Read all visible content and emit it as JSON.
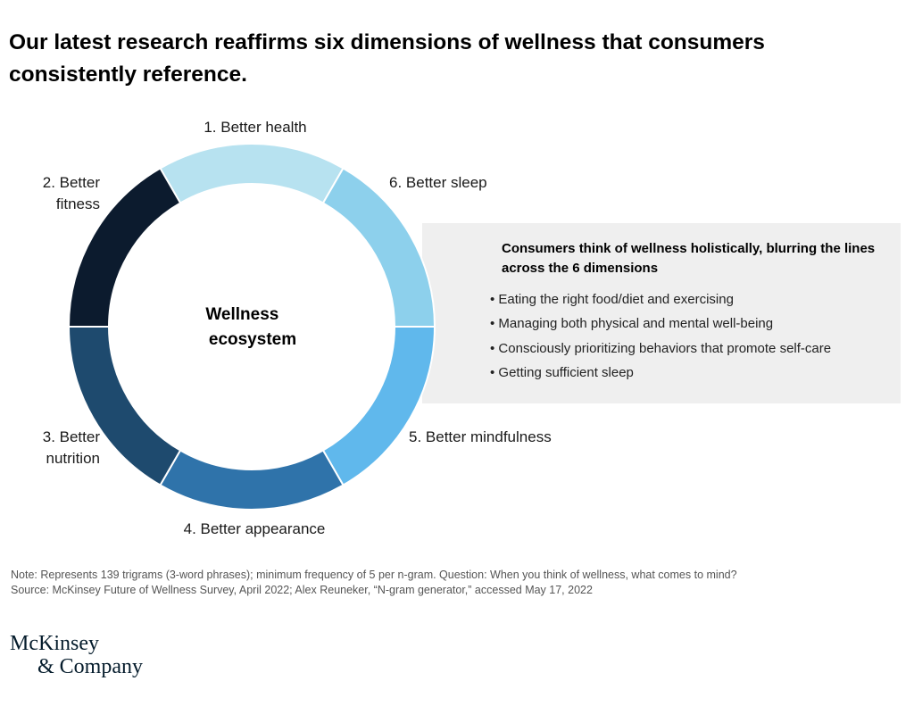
{
  "title": "Our latest research reaffirms six dimensions of wellness that consumers consistently reference.",
  "diagram": {
    "center_label": [
      "Wellness",
      "ecosystem"
    ],
    "segments": [
      {
        "id": "health",
        "label": [
          "1. Better health"
        ],
        "color": "#b7e2f0"
      },
      {
        "id": "sleep",
        "label": [
          "6. Better sleep"
        ],
        "color": "#8dd0ec"
      },
      {
        "id": "mindfulness",
        "label": [
          "5. Better mindfulness"
        ],
        "color": "#60b8ec"
      },
      {
        "id": "appearance",
        "label": [
          "4. Better appearance"
        ],
        "color": "#2f73aa"
      },
      {
        "id": "nutrition",
        "label": [
          "3. Better",
          "nutrition"
        ],
        "color": "#1e4a6e"
      },
      {
        "id": "fitness",
        "label": [
          "2. Better",
          "fitness"
        ],
        "color": "#0c1b2e"
      }
    ]
  },
  "callout": {
    "heading": "Consumers think of wellness holistically, blurring the lines across the 6 dimensions",
    "bullets": [
      "Eating the right food/diet and exercising",
      "Managing both physical and mental well-being",
      "Consciously prioritizing behaviors that promote self-care",
      "Getting sufficient sleep"
    ]
  },
  "note": {
    "line1": "Note: Represents 139 trigrams (3-word phrases); minimum frequency of 5 per n-gram. Question: When you think of wellness, what comes to mind?",
    "line2": "Source: McKinsey Future of Wellness Survey, April 2022; Alex Reuneker, “N-gram generator,” accessed May 17, 2022"
  },
  "logo": {
    "line1": "McKinsey",
    "line2": "& Company"
  }
}
